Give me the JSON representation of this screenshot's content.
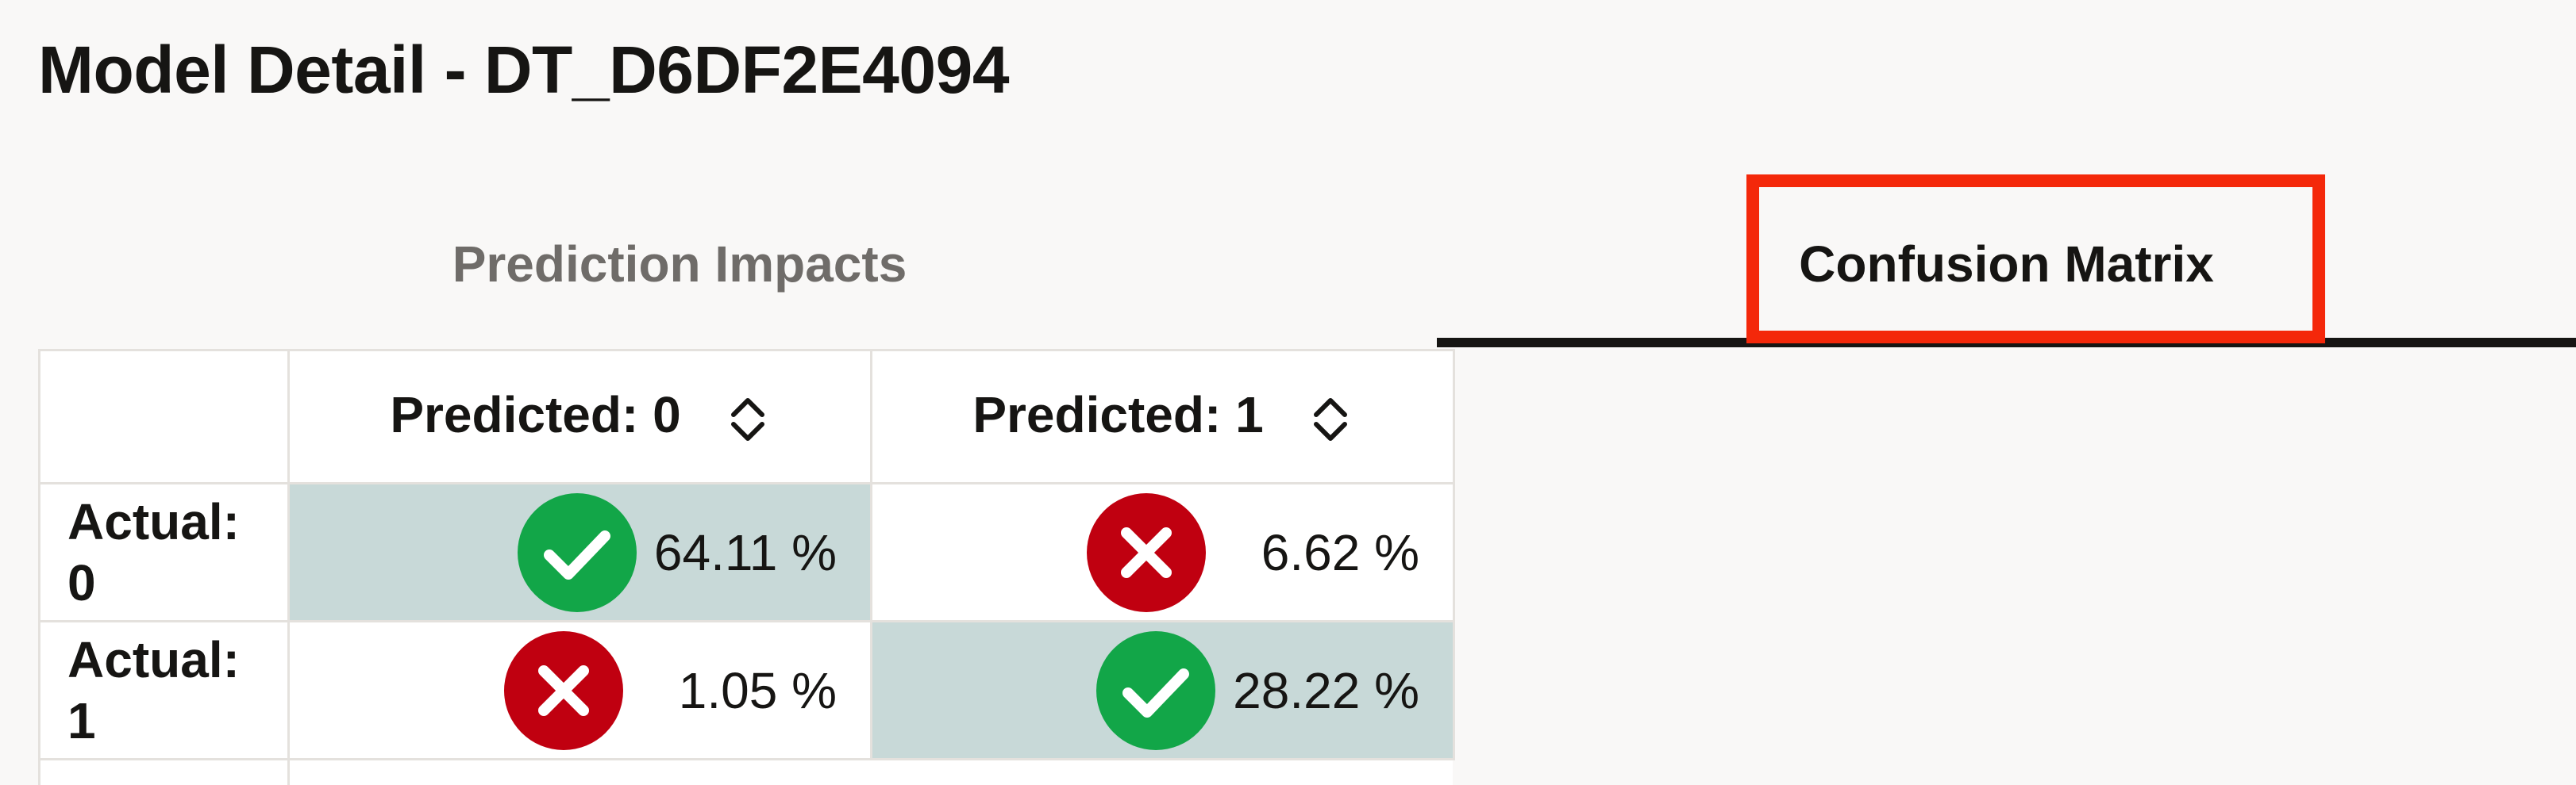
{
  "header": {
    "title": "Model Detail - DT_D6DF2E4094"
  },
  "tabs": [
    {
      "label": "Prediction Impacts",
      "selected": false
    },
    {
      "label": "Confusion Matrix",
      "selected": true
    }
  ],
  "matrix": {
    "columns": [
      {
        "label": "Predicted: 0",
        "icon": "sort-icon"
      },
      {
        "label": "Predicted: 1",
        "icon": "sort-icon"
      }
    ],
    "rows": [
      {
        "label_line1": "Actual:",
        "label_line2": "0",
        "cells": [
          {
            "value": "64.11 %",
            "status": "correct",
            "icon": "check-circle-icon"
          },
          {
            "value": "6.62 %",
            "status": "incorrect",
            "icon": "x-circle-icon"
          }
        ]
      },
      {
        "label_line1": "Actual:",
        "label_line2": "1",
        "cells": [
          {
            "value": "1.05 %",
            "status": "incorrect",
            "icon": "x-circle-icon"
          },
          {
            "value": "28.22 %",
            "status": "correct",
            "icon": "check-circle-icon"
          }
        ]
      }
    ]
  },
  "colors": {
    "correct_fill": "#c8d9d8",
    "check_green": "#12a648",
    "error_red": "#c00010",
    "highlight": "#f4280a"
  }
}
